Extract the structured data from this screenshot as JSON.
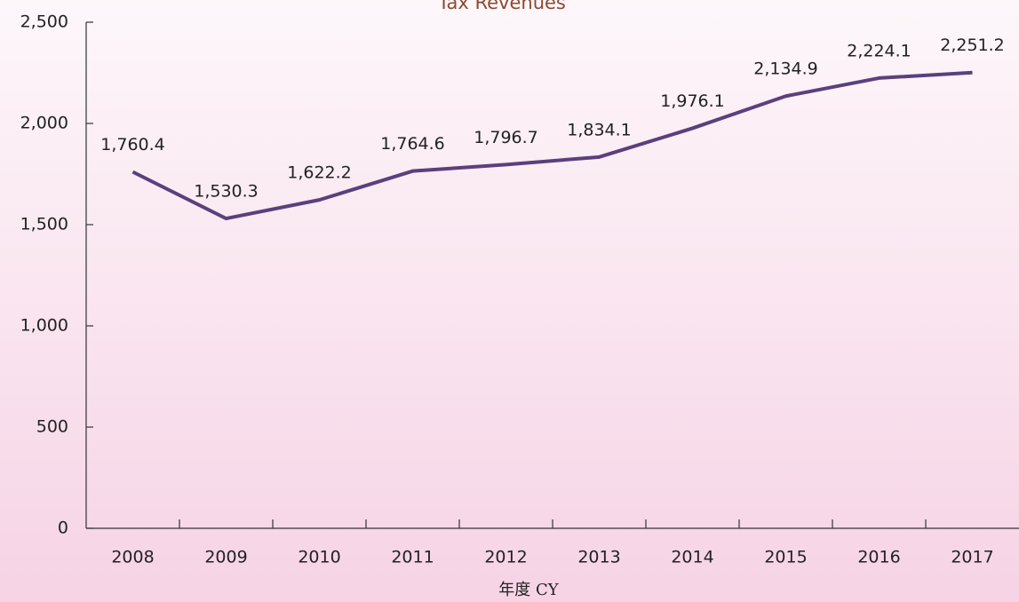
{
  "chart_data": {
    "type": "line",
    "title": "Tax Revenues",
    "x_label": "年度 CY",
    "categories": [
      "2008",
      "2009",
      "2010",
      "2011",
      "2012",
      "2013",
      "2014",
      "2015",
      "2016",
      "2017"
    ],
    "series": [
      {
        "name": "Tax Revenues",
        "color": "#5b3f7d",
        "values": [
          1760.4,
          1530.3,
          1622.2,
          1764.6,
          1796.7,
          1834.1,
          1976.1,
          2134.9,
          2224.1,
          2251.2
        ],
        "value_labels": [
          "1,760.4",
          "1,530.3",
          "1,622.2",
          "1,764.6",
          "1,796.7",
          "1,834.1",
          "1,976.1",
          "2,134.9",
          "2,224.1",
          "2,251.2"
        ]
      }
    ],
    "ylim": [
      0,
      2500
    ],
    "yticks": [
      0,
      500,
      {
        "value": 1000,
        "label": "1,000"
      },
      {
        "value": 1500,
        "label": "1,500"
      },
      {
        "value": 2000,
        "label": "2,000"
      },
      {
        "value": 2500,
        "label": "2,500"
      }
    ],
    "grid": false
  }
}
